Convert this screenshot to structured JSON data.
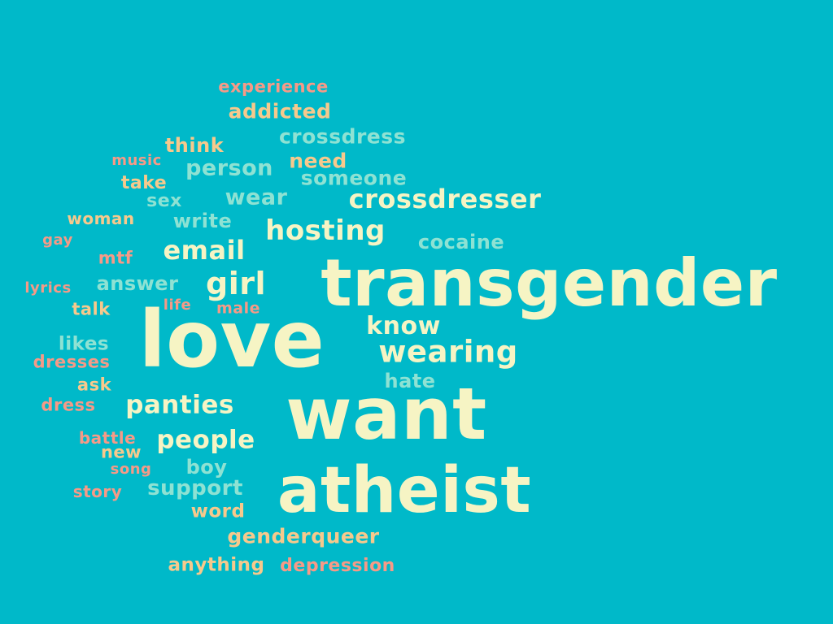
{
  "colors": {
    "background": "#00b9c9",
    "cream": "#f6f4c4",
    "peach": "#f7c98c",
    "salmon": "#f69a87",
    "mint": "#8ee2d3"
  },
  "words": [
    {
      "text": "experience",
      "color": "salmon"
    },
    {
      "text": "addicted",
      "color": "peach"
    },
    {
      "text": "crossdress",
      "color": "mint"
    },
    {
      "text": "think",
      "color": "peach"
    },
    {
      "text": "music",
      "color": "salmon"
    },
    {
      "text": "need",
      "color": "peach"
    },
    {
      "text": "person",
      "color": "mint"
    },
    {
      "text": "someone",
      "color": "mint"
    },
    {
      "text": "take",
      "color": "peach"
    },
    {
      "text": "wear",
      "color": "mint"
    },
    {
      "text": "crossdresser",
      "color": "cream"
    },
    {
      "text": "sex",
      "color": "mint"
    },
    {
      "text": "woman",
      "color": "peach"
    },
    {
      "text": "write",
      "color": "mint"
    },
    {
      "text": "hosting",
      "color": "cream"
    },
    {
      "text": "gay",
      "color": "salmon"
    },
    {
      "text": "cocaine",
      "color": "mint"
    },
    {
      "text": "email",
      "color": "cream"
    },
    {
      "text": "mtf",
      "color": "salmon"
    },
    {
      "text": "transgender",
      "color": "cream"
    },
    {
      "text": "lyrics",
      "color": "salmon"
    },
    {
      "text": "answer",
      "color": "mint"
    },
    {
      "text": "girl",
      "color": "cream"
    },
    {
      "text": "talk",
      "color": "peach"
    },
    {
      "text": "life",
      "color": "salmon"
    },
    {
      "text": "male",
      "color": "salmon"
    },
    {
      "text": "love",
      "color": "cream"
    },
    {
      "text": "know",
      "color": "cream"
    },
    {
      "text": "likes",
      "color": "mint"
    },
    {
      "text": "wearing",
      "color": "cream"
    },
    {
      "text": "dresses",
      "color": "salmon"
    },
    {
      "text": "hate",
      "color": "mint"
    },
    {
      "text": "ask",
      "color": "peach"
    },
    {
      "text": "dress",
      "color": "salmon"
    },
    {
      "text": "panties",
      "color": "cream"
    },
    {
      "text": "want",
      "color": "cream"
    },
    {
      "text": "battle",
      "color": "salmon"
    },
    {
      "text": "people",
      "color": "cream"
    },
    {
      "text": "new",
      "color": "peach"
    },
    {
      "text": "song",
      "color": "salmon"
    },
    {
      "text": "boy",
      "color": "mint"
    },
    {
      "text": "story",
      "color": "salmon"
    },
    {
      "text": "support",
      "color": "mint"
    },
    {
      "text": "atheist",
      "color": "cream"
    },
    {
      "text": "word",
      "color": "peach"
    },
    {
      "text": "genderqueer",
      "color": "peach"
    },
    {
      "text": "anything",
      "color": "peach"
    },
    {
      "text": "depression",
      "color": "salmon"
    }
  ]
}
